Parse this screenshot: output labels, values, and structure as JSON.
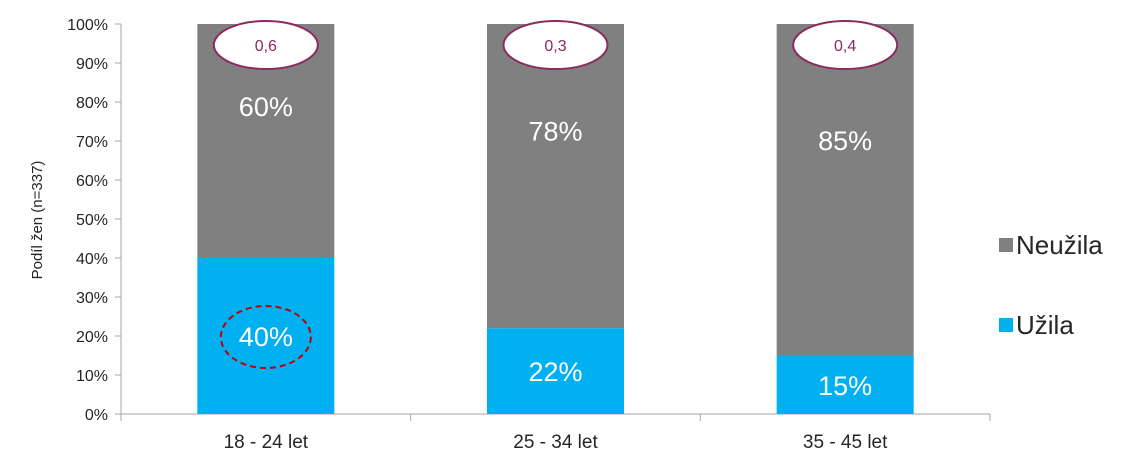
{
  "chart_data": {
    "type": "bar",
    "stacked": true,
    "categories": [
      "18 - 24 let",
      "25 - 34 let",
      "35 - 45 let"
    ],
    "series": [
      {
        "name": "Užila",
        "color": "#00b0f0",
        "values": [
          40,
          22,
          15
        ],
        "labels": [
          "40%",
          "22%",
          "15%"
        ]
      },
      {
        "name": "Neužila",
        "color": "#808080",
        "values": [
          60,
          78,
          85
        ],
        "labels": [
          "60%",
          "78%",
          "85%"
        ]
      }
    ],
    "ylabel": "Podíl žen (n=337)",
    "ylim": [
      0,
      100
    ],
    "yticks": [
      "0%",
      "10%",
      "20%",
      "30%",
      "40%",
      "50%",
      "60%",
      "70%",
      "80%",
      "90%",
      "100%"
    ],
    "annotations": [
      "0,6",
      "0,3",
      "0,4"
    ],
    "highlight": "40%",
    "legend_position": "right",
    "legend_order": [
      "Neužila",
      "Užila"
    ],
    "grid": false
  }
}
